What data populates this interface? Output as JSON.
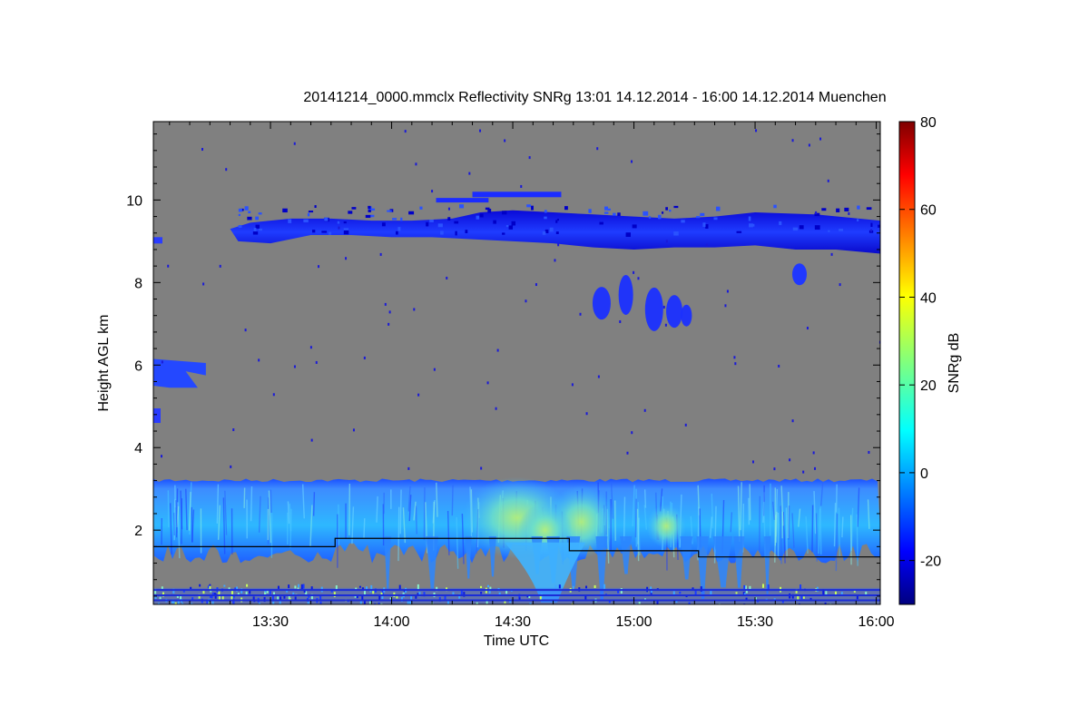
{
  "chart_data": {
    "type": "heatmap",
    "title": "20141214_0000.mmclx Reflectivity SNRg   13:01 14.12.2014 - 16:00 14.12.2014 Muenchen",
    "xlabel": "Time UTC",
    "ylabel": "Height AGL km",
    "x_ticks": [
      "13:30",
      "14:00",
      "14:30",
      "15:00",
      "15:30",
      "16:00"
    ],
    "xlim": [
      "13:01",
      "16:01"
    ],
    "y_ticks": [
      2,
      4,
      6,
      8,
      10
    ],
    "ylim": [
      0.2,
      11.9
    ],
    "colorbar": {
      "label": "SNRg dB",
      "ticks": [
        -20,
        0,
        20,
        40,
        60,
        80
      ],
      "range": [
        -30,
        80
      ],
      "colormap": "jet"
    },
    "background_color": "#808080",
    "boundary_line": {
      "description": "black step line",
      "points": [
        [
          "13:01",
          1.6
        ],
        [
          "13:46",
          1.6
        ],
        [
          "13:46",
          1.8
        ],
        [
          "14:44",
          1.8
        ],
        [
          "14:44",
          1.5
        ],
        [
          "15:16",
          1.5
        ],
        [
          "15:16",
          1.35
        ],
        [
          "16:01",
          1.35
        ]
      ]
    },
    "features": [
      {
        "name": "low-cloud-layer",
        "t_start": "13:01",
        "t_end": "16:01",
        "h_bottom": 1.2,
        "h_top": 3.25,
        "snr_peak": 30
      },
      {
        "name": "cirrus-layer",
        "t_start": "13:21",
        "t_end": "16:01",
        "h_bottom": 8.6,
        "h_top": 10.1,
        "snr_peak": -22
      },
      {
        "name": "mid-level-patch",
        "t_start": "13:01",
        "t_end": "13:14",
        "h_bottom": 5.4,
        "h_top": 6.1,
        "snr_peak": -15
      },
      {
        "name": "virga-cells",
        "t_start": "14:52",
        "t_end": "15:15",
        "h_bottom": 6.8,
        "h_top": 8.0,
        "snr_peak": -22
      },
      {
        "name": "ground-clutter",
        "t_start": "13:01",
        "t_end": "16:01",
        "h_bottom": 0.2,
        "h_top": 0.6,
        "snr_peak": 10
      }
    ]
  }
}
